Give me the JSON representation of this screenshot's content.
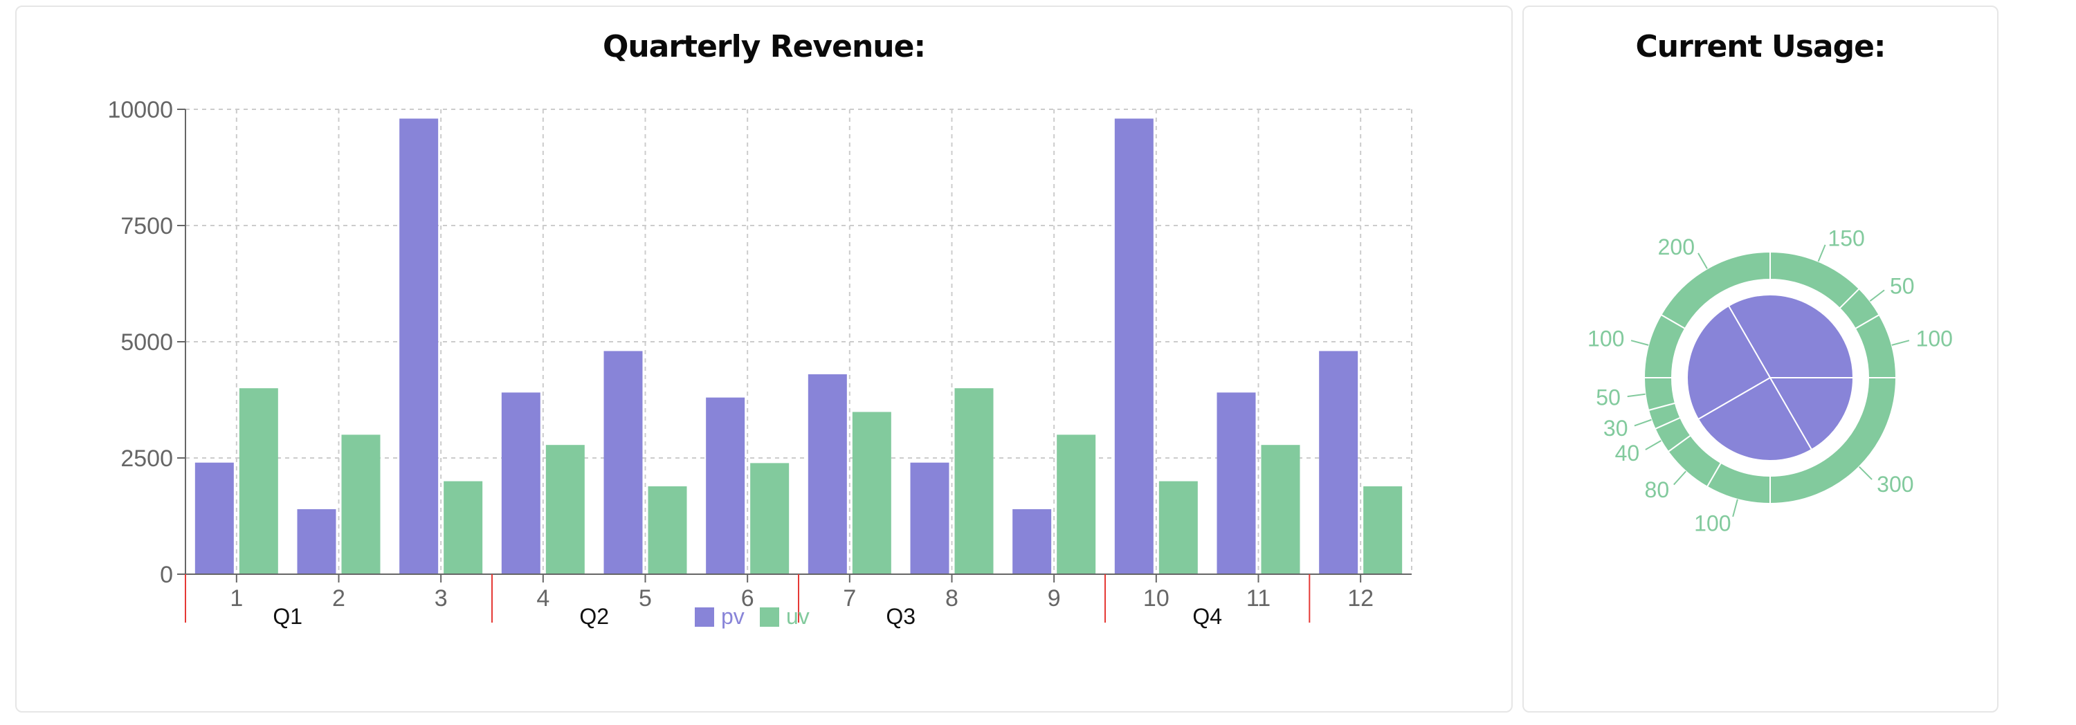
{
  "chart_data": [
    {
      "type": "bar",
      "title": "Quarterly Revenue:",
      "categories": [
        "1",
        "2",
        "3",
        "4",
        "5",
        "6",
        "7",
        "8",
        "9",
        "10",
        "11",
        "12"
      ],
      "series": [
        {
          "name": "pv",
          "color": "#8884d8",
          "values": [
            2400,
            1398,
            9800,
            3908,
            4800,
            3800,
            4300,
            2400,
            1398,
            9800,
            3908,
            4800
          ]
        },
        {
          "name": "uv",
          "color": "#82ca9d",
          "values": [
            4000,
            3000,
            2000,
            2780,
            1890,
            2390,
            3490,
            4000,
            3000,
            2000,
            2780,
            1890
          ]
        }
      ],
      "y_ticks": [
        "0",
        "2500",
        "5000",
        "7500",
        "10000"
      ],
      "ylim": [
        0,
        10000
      ],
      "quarters": [
        {
          "label": "Q1",
          "start": 1,
          "end": 3
        },
        {
          "label": "Q2",
          "start": 4,
          "end": 6
        },
        {
          "label": "Q3",
          "start": 7,
          "end": 9
        },
        {
          "label": "Q4",
          "start": 10,
          "end": 11
        },
        {
          "label": "",
          "start": 12,
          "end": 12
        }
      ],
      "grid": true,
      "legend": "bottom"
    },
    {
      "type": "pie",
      "title": "Current Usage:",
      "inner": {
        "color": "#8884d8",
        "values": [
          400,
          300,
          300,
          200
        ]
      },
      "outer": {
        "color": "#82ca9d",
        "values": [
          100,
          50,
          150,
          200,
          100,
          50,
          30,
          40,
          80,
          100,
          300
        ],
        "labels": [
          "100",
          "50",
          "150",
          "200",
          "100",
          "50",
          "30",
          "40",
          "80",
          "100",
          "300"
        ]
      }
    }
  ]
}
